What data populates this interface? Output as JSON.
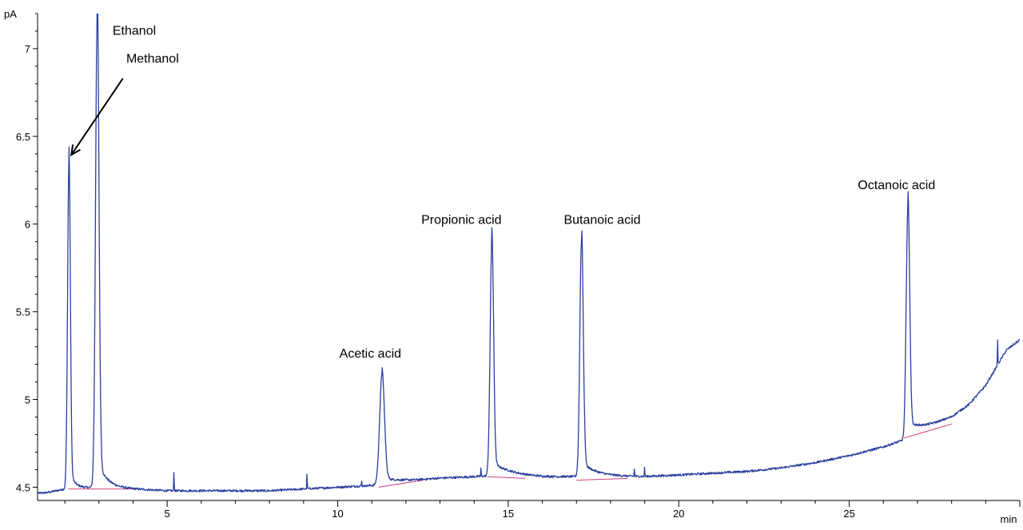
{
  "chart_data": {
    "type": "line",
    "title": "",
    "xlabel": "min",
    "ylabel": "pA",
    "xlim": [
      1.2,
      30.0
    ],
    "ylim": [
      4.47,
      7.2
    ],
    "x_ticks": [
      5,
      10,
      15,
      20,
      25,
      30
    ],
    "x_tick_labels": [
      "5",
      "10",
      "15",
      "20",
      "25",
      ""
    ],
    "y_ticks": [
      4.5,
      5,
      5.5,
      6,
      6.5,
      7
    ],
    "y_tick_labels": [
      "4.5",
      "5",
      "5.5",
      "6",
      "6.5",
      "7"
    ],
    "grid": false,
    "colors": {
      "trace": "#2b3f9e",
      "baseline": "#d0407a",
      "axis": "#000000"
    },
    "baseline_points": [
      {
        "x": 2.1,
        "y": 4.49
      },
      {
        "x": 4.0,
        "y": 4.49
      },
      {
        "x": 11.2,
        "y": 4.5
      },
      {
        "x": 12.5,
        "y": 4.54
      },
      {
        "x": 14.4,
        "y": 4.56
      },
      {
        "x": 15.5,
        "y": 4.55
      },
      {
        "x": 17.0,
        "y": 4.54
      },
      {
        "x": 18.5,
        "y": 4.55
      },
      {
        "x": 26.6,
        "y": 4.78
      },
      {
        "x": 28.0,
        "y": 4.86
      }
    ],
    "series": [
      {
        "baseline_points": [
          {
            "x": 1.2,
            "y": 4.465
          },
          {
            "x": 1.5,
            "y": 4.47
          },
          {
            "x": 2.0,
            "y": 4.49
          },
          {
            "x": 3.0,
            "y": 4.5
          },
          {
            "x": 4.0,
            "y": 4.49
          },
          {
            "x": 5.0,
            "y": 4.48
          },
          {
            "x": 6.0,
            "y": 4.48
          },
          {
            "x": 7.0,
            "y": 4.48
          },
          {
            "x": 8.0,
            "y": 4.48
          },
          {
            "x": 9.0,
            "y": 4.49
          },
          {
            "x": 10.0,
            "y": 4.5
          },
          {
            "x": 11.0,
            "y": 4.51
          },
          {
            "x": 12.0,
            "y": 4.53
          },
          {
            "x": 13.0,
            "y": 4.55
          },
          {
            "x": 14.0,
            "y": 4.56
          },
          {
            "x": 15.0,
            "y": 4.57
          },
          {
            "x": 16.0,
            "y": 4.56
          },
          {
            "x": 17.0,
            "y": 4.56
          },
          {
            "x": 18.0,
            "y": 4.56
          },
          {
            "x": 19.0,
            "y": 4.56
          },
          {
            "x": 20.0,
            "y": 4.57
          },
          {
            "x": 21.0,
            "y": 4.58
          },
          {
            "x": 22.0,
            "y": 4.59
          },
          {
            "x": 23.0,
            "y": 4.61
          },
          {
            "x": 24.0,
            "y": 4.64
          },
          {
            "x": 25.0,
            "y": 4.68
          },
          {
            "x": 26.0,
            "y": 4.73
          },
          {
            "x": 26.6,
            "y": 4.77
          },
          {
            "x": 27.0,
            "y": 4.82
          },
          {
            "x": 28.0,
            "y": 4.9
          },
          {
            "x": 28.5,
            "y": 4.97
          },
          {
            "x": 29.0,
            "y": 5.08
          },
          {
            "x": 29.3,
            "y": 5.18
          },
          {
            "x": 29.6,
            "y": 5.28
          },
          {
            "x": 30.0,
            "y": 5.34
          }
        ],
        "peaks": [
          {
            "name": "Methanol",
            "rt": 2.12,
            "apex": 6.34,
            "width": 0.04,
            "tail": 0.15
          },
          {
            "name": "Ethanol",
            "rt": 2.95,
            "apex": 7.2,
            "width": 0.05,
            "tail": 0.25
          },
          {
            "name": "Acetic acid",
            "rt": 11.3,
            "apex": 5.14,
            "width": 0.07,
            "tail": 0.6
          },
          {
            "name": "Propionic acid",
            "rt": 14.52,
            "apex": 5.9,
            "width": 0.05,
            "tail": 0.45
          },
          {
            "name": "Butanoic acid",
            "rt": 17.15,
            "apex": 5.91,
            "width": 0.05,
            "tail": 0.45
          },
          {
            "name": "Octanoic acid",
            "rt": 26.72,
            "apex": 6.11,
            "width": 0.05,
            "tail": 0.35
          }
        ],
        "spikes": [
          {
            "x": 5.2,
            "y": 4.61
          },
          {
            "x": 9.1,
            "y": 4.59
          },
          {
            "x": 10.7,
            "y": 4.54
          },
          {
            "x": 14.2,
            "y": 4.62
          },
          {
            "x": 18.7,
            "y": 4.61
          },
          {
            "x": 19.0,
            "y": 4.62
          },
          {
            "x": 29.35,
            "y": 5.35
          }
        ]
      }
    ],
    "annotations": [
      {
        "text": "Ethanol",
        "x": 3.4,
        "y": 7.08
      },
      {
        "text": "Methanol",
        "x": 3.8,
        "y": 6.92
      },
      {
        "text": "Acetic acid",
        "x": 10.05,
        "y": 5.24
      },
      {
        "text": "Propionic acid",
        "x": 12.45,
        "y": 6.0
      },
      {
        "text": "Butanoic acid",
        "x": 16.63,
        "y": 6.0
      },
      {
        "text": "Octanoic acid",
        "x": 25.25,
        "y": 6.2
      }
    ]
  }
}
